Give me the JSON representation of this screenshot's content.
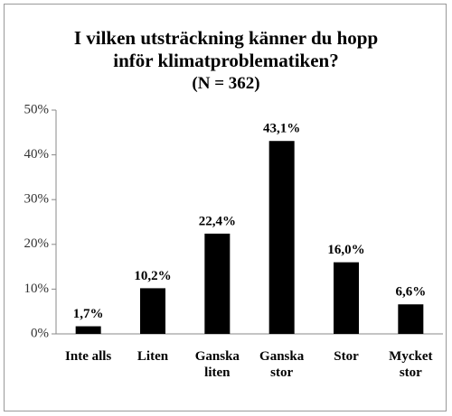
{
  "chart_data": {
    "type": "bar",
    "title": "I vilken utsträckning känner du hopp inför klimatproblematiken?",
    "subtitle": "(N = 362)",
    "categories": [
      "Inte alls",
      "Liten",
      "Ganska liten",
      "Ganska stor",
      "Stor",
      "Mycket stor"
    ],
    "values": [
      1.7,
      10.2,
      22.4,
      43.1,
      16.0,
      6.6
    ],
    "value_labels": [
      "1,7%",
      "10,2%",
      "22,4%",
      "43,1%",
      "16,0%",
      "6,6%"
    ],
    "color": "#000000",
    "ylim": [
      0,
      50
    ],
    "yticks": [
      {
        "value": 0,
        "label": "0%"
      },
      {
        "value": 10,
        "label": "10%"
      },
      {
        "value": 20,
        "label": "20%"
      },
      {
        "value": 30,
        "label": "30%"
      },
      {
        "value": 40,
        "label": "40%"
      },
      {
        "value": 50,
        "label": "50%"
      }
    ]
  }
}
